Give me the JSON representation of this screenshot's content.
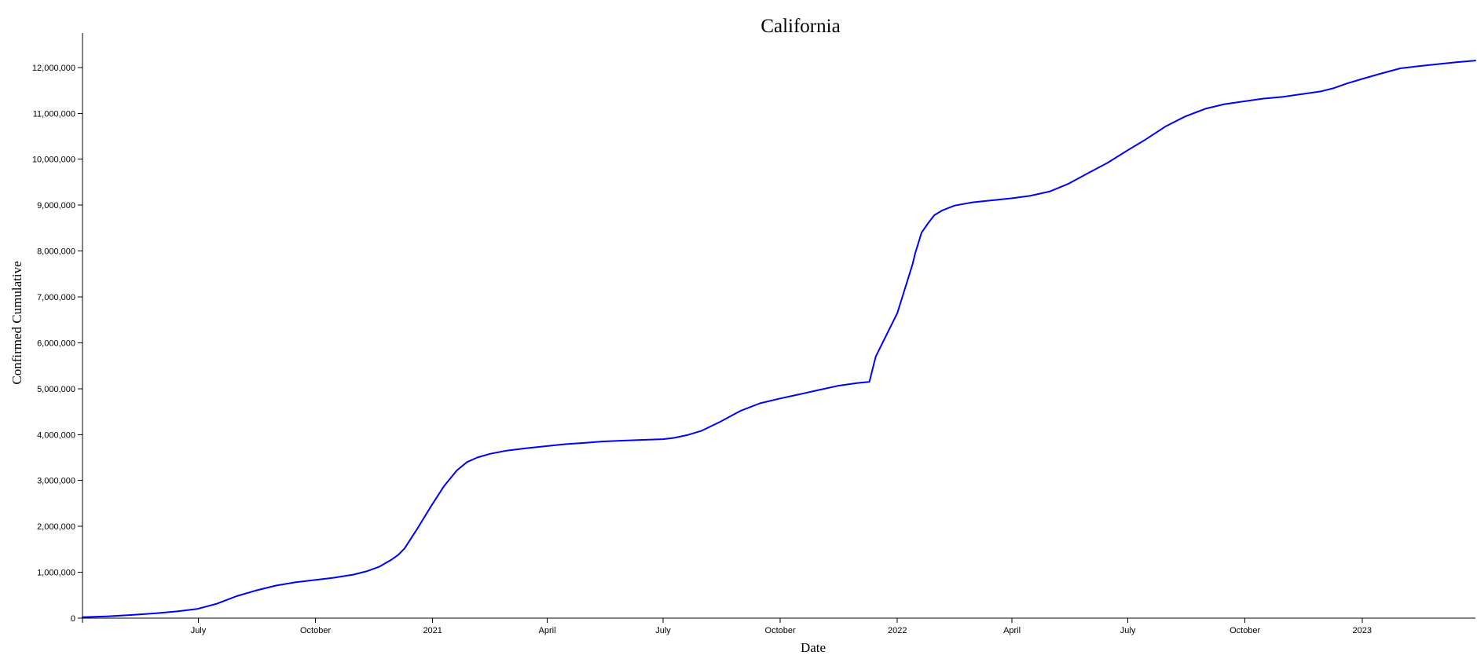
{
  "chart_data": {
    "type": "line",
    "title": "California",
    "xlabel": "Date",
    "ylabel": "Confirmed Cumulative",
    "x_type": "date",
    "xlim": [
      "2020-04-01",
      "2023-03-31"
    ],
    "ylim": [
      0,
      12750000
    ],
    "grid": false,
    "line_color": "#0000ff",
    "x_ticks": [
      {
        "date": "2020-07-01",
        "label": "July"
      },
      {
        "date": "2020-10-01",
        "label": "October"
      },
      {
        "date": "2021-01-01",
        "label": "2021"
      },
      {
        "date": "2021-04-01",
        "label": "April"
      },
      {
        "date": "2021-07-01",
        "label": "July"
      },
      {
        "date": "2021-10-01",
        "label": "October"
      },
      {
        "date": "2022-01-01",
        "label": "2022"
      },
      {
        "date": "2022-04-01",
        "label": "April"
      },
      {
        "date": "2022-07-01",
        "label": "July"
      },
      {
        "date": "2022-10-01",
        "label": "October"
      },
      {
        "date": "2023-01-01",
        "label": "2023"
      }
    ],
    "y_ticks": [
      {
        "value": 0,
        "label": "0"
      },
      {
        "value": 1000000,
        "label": "1,000,000"
      },
      {
        "value": 2000000,
        "label": "2,000,000"
      },
      {
        "value": 3000000,
        "label": "3,000,000"
      },
      {
        "value": 4000000,
        "label": "4,000,000"
      },
      {
        "value": 5000000,
        "label": "5,000,000"
      },
      {
        "value": 6000000,
        "label": "6,000,000"
      },
      {
        "value": 7000000,
        "label": "7,000,000"
      },
      {
        "value": 8000000,
        "label": "8,000,000"
      },
      {
        "value": 9000000,
        "label": "9,000,000"
      },
      {
        "value": 10000000,
        "label": "10,000,000"
      },
      {
        "value": 11000000,
        "label": "11,000,000"
      },
      {
        "value": 12000000,
        "label": "12,000,000"
      }
    ],
    "series": [
      {
        "x": [
          "2020-04-01",
          "2020-04-20",
          "2020-05-10",
          "2020-05-30",
          "2020-06-15",
          "2020-06-30",
          "2020-07-15",
          "2020-07-31",
          "2020-08-15",
          "2020-08-31",
          "2020-09-15",
          "2020-09-30",
          "2020-10-15",
          "2020-10-31",
          "2020-11-10",
          "2020-11-20",
          "2020-11-30",
          "2020-12-05",
          "2020-12-10",
          "2020-12-20",
          "2020-12-31",
          "2021-01-10",
          "2021-01-20",
          "2021-01-28",
          "2021-02-05",
          "2021-02-15",
          "2021-02-28",
          "2021-03-15",
          "2021-04-01",
          "2021-04-15",
          "2021-05-01",
          "2021-05-15",
          "2021-06-01",
          "2021-06-15",
          "2021-07-01",
          "2021-07-10",
          "2021-07-20",
          "2021-07-31",
          "2021-08-15",
          "2021-08-31",
          "2021-09-15",
          "2021-09-30",
          "2021-10-15",
          "2021-10-31",
          "2021-11-15",
          "2021-11-30",
          "2021-12-10",
          "2021-12-15",
          "2022-01-01",
          "2022-01-13",
          "2022-01-15",
          "2022-01-20",
          "2022-01-25",
          "2022-01-30",
          "2022-02-05",
          "2022-02-15",
          "2022-03-01",
          "2022-03-15",
          "2022-04-01",
          "2022-04-15",
          "2022-05-01",
          "2022-05-15",
          "2022-05-31",
          "2022-06-15",
          "2022-06-30",
          "2022-07-15",
          "2022-07-31",
          "2022-08-15",
          "2022-08-31",
          "2022-09-15",
          "2022-09-30",
          "2022-10-15",
          "2022-10-31",
          "2022-11-15",
          "2022-11-30",
          "2022-12-10",
          "2022-12-20",
          "2022-12-31",
          "2023-01-15",
          "2023-01-31",
          "2023-02-15",
          "2023-03-01",
          "2023-03-15",
          "2023-03-31"
        ],
        "y": [
          20000,
          40000,
          70000,
          110000,
          150000,
          200000,
          310000,
          480000,
          600000,
          710000,
          780000,
          830000,
          880000,
          950000,
          1020000,
          1120000,
          1280000,
          1380000,
          1520000,
          1950000,
          2450000,
          2880000,
          3220000,
          3400000,
          3500000,
          3580000,
          3650000,
          3700000,
          3750000,
          3790000,
          3820000,
          3850000,
          3870000,
          3885000,
          3900000,
          3930000,
          3990000,
          4080000,
          4280000,
          4520000,
          4680000,
          4780000,
          4870000,
          4970000,
          5060000,
          5120000,
          5150000,
          5700000,
          6650000,
          7720000,
          7950000,
          8400000,
          8600000,
          8780000,
          8880000,
          8990000,
          9060000,
          9100000,
          9150000,
          9200000,
          9300000,
          9460000,
          9700000,
          9920000,
          10180000,
          10430000,
          10720000,
          10930000,
          11100000,
          11200000,
          11260000,
          11320000,
          11360000,
          11420000,
          11480000,
          11550000,
          11650000,
          11740000,
          11860000,
          11980000,
          12030000,
          12070000,
          12110000,
          12150000
        ]
      }
    ]
  }
}
